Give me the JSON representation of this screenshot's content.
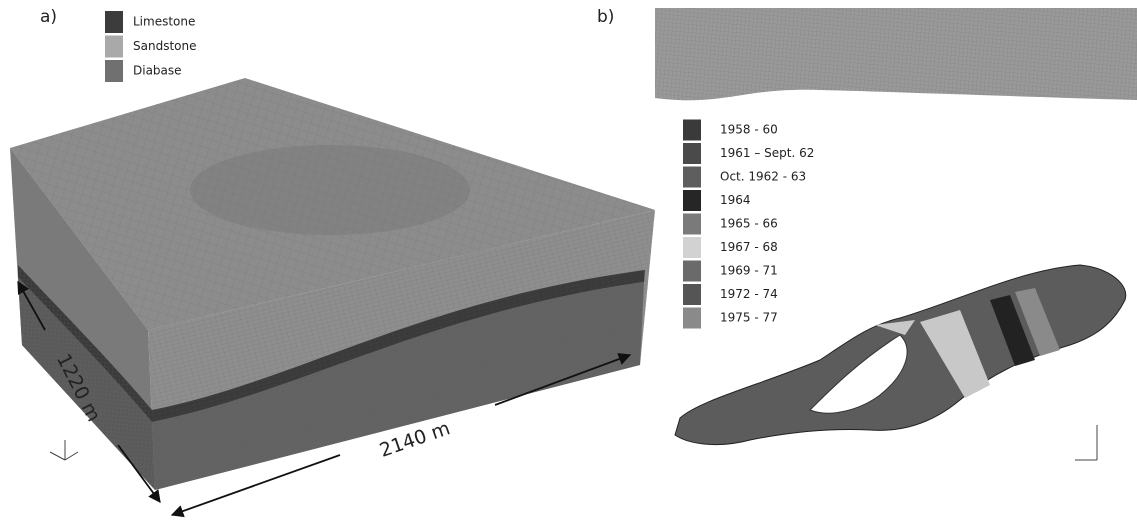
{
  "panel_a": {
    "label": "a)",
    "legend": [
      {
        "label": "Limestone",
        "color": "#3c3c3c"
      },
      {
        "label": "Sandstone",
        "color": "#a9a9a9"
      },
      {
        "label": "Diabase",
        "color": "#707070"
      }
    ],
    "width_label": "1220 m",
    "length_label": "2140 m"
  },
  "panel_b": {
    "label": "b)",
    "legend": [
      {
        "label": "1958 - 60",
        "color": "#3a3a3a"
      },
      {
        "label": "1961 – Sept. 62",
        "color": "#4a4a4a"
      },
      {
        "label": "Oct. 1962 - 63",
        "color": "#5e5e5e"
      },
      {
        "label": "1964",
        "color": "#262626"
      },
      {
        "label": "1965 - 66",
        "color": "#7a7a7a"
      },
      {
        "label": "1967 - 68",
        "color": "#d2d2d2"
      },
      {
        "label": "1969 - 71",
        "color": "#6a6a6a"
      },
      {
        "label": "1972 - 74",
        "color": "#555555"
      },
      {
        "label": "1975 - 77",
        "color": "#8a8a8a"
      }
    ]
  }
}
